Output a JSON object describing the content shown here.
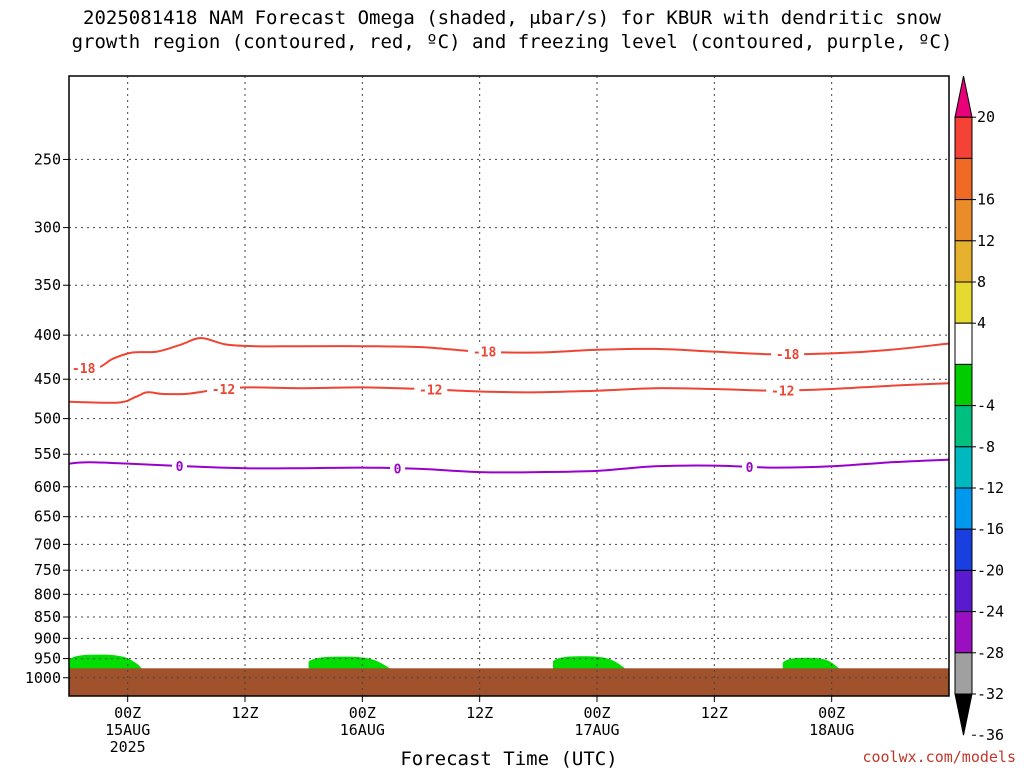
{
  "title": {
    "line1": "2025081418 NAM Forecast Omega (shaded, μbar/s) for KBUR with dendritic snow",
    "line2": "growth region (contoured, red, ºC) and freezing level (contoured, purple, ºC)"
  },
  "credit": "coolwx.com/models",
  "chart_data": {
    "type": "time-height cross section",
    "xlabel": "Forecast Time (UTC)",
    "x_range_hours": [
      -6,
      84
    ],
    "x_ticks": [
      {
        "hour": 0,
        "line1": "00Z",
        "line2": "15AUG",
        "line3": "2025"
      },
      {
        "hour": 12,
        "line1": "12Z",
        "line2": "",
        "line3": ""
      },
      {
        "hour": 24,
        "line1": "00Z",
        "line2": "16AUG",
        "line3": ""
      },
      {
        "hour": 36,
        "line1": "12Z",
        "line2": "",
        "line3": ""
      },
      {
        "hour": 48,
        "line1": "00Z",
        "line2": "17AUG",
        "line3": ""
      },
      {
        "hour": 60,
        "line1": "12Z",
        "line2": "",
        "line3": ""
      },
      {
        "hour": 72,
        "line1": "00Z",
        "line2": "18AUG",
        "line3": ""
      }
    ],
    "y_axis": "pressure (hPa), log scale, inverted",
    "y_range_hpa": [
      200,
      1050
    ],
    "y_ticks": [
      250,
      300,
      350,
      400,
      450,
      500,
      550,
      600,
      650,
      700,
      750,
      800,
      850,
      900,
      950,
      1000
    ],
    "grid": "dotted",
    "colors": {
      "omega_positive": "#00dd00",
      "terrain": "#a0522d",
      "dendritic_contours": "#ee4433",
      "freezing_contour": "#9900cc"
    },
    "terrain_top_hpa": 975,
    "contours": [
      {
        "label": "-18",
        "kind": "dendritic",
        "label_hours": [
          -4.5,
          36.5,
          67.5
        ],
        "points": [
          [
            -6,
            437
          ],
          [
            -3.2,
            437
          ],
          [
            -1.5,
            426
          ],
          [
            0.5,
            419
          ],
          [
            3,
            418
          ],
          [
            5.5,
            410
          ],
          [
            7.5,
            403
          ],
          [
            10,
            410
          ],
          [
            13,
            412
          ],
          [
            18,
            412
          ],
          [
            24,
            412
          ],
          [
            30,
            413
          ],
          [
            36,
            418
          ],
          [
            42,
            419
          ],
          [
            48,
            416
          ],
          [
            54,
            415
          ],
          [
            60,
            418
          ],
          [
            66,
            421
          ],
          [
            72,
            420
          ],
          [
            78,
            416
          ],
          [
            84,
            409
          ]
        ]
      },
      {
        "label": "-12",
        "kind": "dendritic",
        "label_hours": [
          9.8,
          31,
          67
        ],
        "points": [
          [
            -6,
            478
          ],
          [
            -1,
            479
          ],
          [
            0.8,
            472
          ],
          [
            2,
            466
          ],
          [
            3.5,
            468
          ],
          [
            6,
            468
          ],
          [
            9,
            463
          ],
          [
            12,
            460
          ],
          [
            18,
            461
          ],
          [
            24,
            460
          ],
          [
            30,
            462
          ],
          [
            36,
            465
          ],
          [
            42,
            466
          ],
          [
            48,
            464
          ],
          [
            54,
            461
          ],
          [
            60,
            462
          ],
          [
            66,
            464
          ],
          [
            72,
            462
          ],
          [
            78,
            458
          ],
          [
            84,
            455
          ]
        ]
      },
      {
        "label": "0",
        "kind": "freezing",
        "label_hours": [
          5.3,
          27.6,
          63.6
        ],
        "points": [
          [
            -6,
            564
          ],
          [
            -4,
            562
          ],
          [
            0,
            564
          ],
          [
            6,
            568
          ],
          [
            12,
            571
          ],
          [
            18,
            571
          ],
          [
            24,
            570
          ],
          [
            30,
            572
          ],
          [
            36,
            577
          ],
          [
            42,
            577
          ],
          [
            48,
            575
          ],
          [
            54,
            568
          ],
          [
            60,
            567
          ],
          [
            66,
            570
          ],
          [
            72,
            568
          ],
          [
            78,
            562
          ],
          [
            84,
            558
          ]
        ]
      }
    ],
    "omega_shading": [
      {
        "value_range": "4 to 8",
        "color": "#00dd00",
        "hour_range": [
          -6,
          1.5
        ],
        "top_hpa": 940
      },
      {
        "value_range": "4 to 8",
        "color": "#00dd00",
        "hour_range": [
          18.5,
          27
        ],
        "top_hpa": 945
      },
      {
        "value_range": "4 to 8",
        "color": "#00dd00",
        "hour_range": [
          43.5,
          51
        ],
        "top_hpa": 944
      },
      {
        "value_range": "4 to 8",
        "color": "#00dd00",
        "hour_range": [
          67,
          73
        ],
        "top_hpa": 948
      }
    ],
    "colorbar": {
      "levels": [
        {
          "label": "20",
          "from": 20,
          "to": 24,
          "color": "#e8007a",
          "arrow": "up"
        },
        {
          "label": "",
          "from": 16,
          "to": 20,
          "color": "#f44336"
        },
        {
          "label": "16",
          "from": 12,
          "to": 16,
          "color": "#f06a25"
        },
        {
          "label": "12",
          "from": 8,
          "to": 12,
          "color": "#eb8c2a"
        },
        {
          "label": "8",
          "from": 4,
          "to": 8,
          "color": "#e6b22d"
        },
        {
          "label": "4",
          "from": -4,
          "to": 4,
          "color": "#e6d930"
        },
        {
          "label": "",
          "from": -8,
          "to": -4,
          "color": "#ffffff"
        },
        {
          "label": "-4",
          "from": -12,
          "to": -8,
          "color": "#00cc00"
        },
        {
          "label": "-8",
          "from": -16,
          "to": -12,
          "color": "#00c080"
        },
        {
          "label": "-12",
          "from": -20,
          "to": -16,
          "color": "#00b8c0"
        },
        {
          "label": "-16",
          "from": -24,
          "to": -20,
          "color": "#0099ee"
        },
        {
          "label": "-20",
          "from": -28,
          "to": -24,
          "color": "#1a3fe0"
        },
        {
          "label": "-24",
          "from": -32,
          "to": -28,
          "color": "#5a1ad0"
        },
        {
          "label": "-28",
          "from": -36,
          "to": -32,
          "color": "#9a10c0"
        },
        {
          "label": "-32",
          "from": -40,
          "to": -36,
          "color": "#a0a0a0"
        },
        {
          "label": "-36",
          "from": -44,
          "to": -40,
          "color": "#000000",
          "arrow": "down"
        }
      ]
    }
  }
}
